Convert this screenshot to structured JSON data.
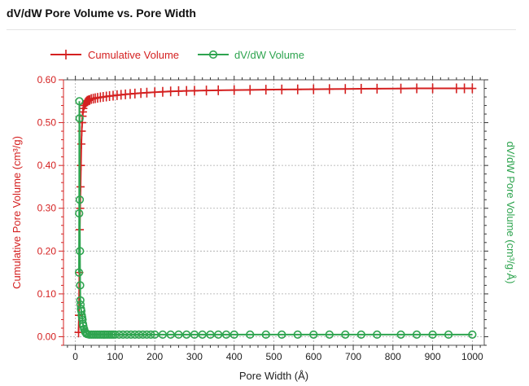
{
  "page": {
    "title": "dV/dW Pore Volume vs. Pore Width"
  },
  "chart_data": {
    "type": "line",
    "title": "dV/dW Pore Volume vs. Pore Width",
    "xlabel": "Pore Width (Å)",
    "ylabel": "Cumulative Pore Volume (cm³/g)",
    "y2label": "dV/dW Pore Volume (cm³/g·Å)",
    "xlim": [
      -30,
      1030
    ],
    "ylim": [
      -0.02,
      0.6
    ],
    "xticks": [
      0,
      100,
      200,
      300,
      400,
      500,
      600,
      700,
      800,
      900,
      1000
    ],
    "xtick_labels": [
      "0",
      "100",
      "200",
      "300",
      "400",
      "500",
      "600",
      "700",
      "800",
      "900",
      "1000"
    ],
    "yticks": [
      0.0,
      0.1,
      0.2,
      0.3,
      0.4,
      0.5,
      0.6
    ],
    "ytick_labels": [
      "0.00",
      "0.10",
      "0.20",
      "0.30",
      "0.40",
      "0.50",
      "0.60"
    ],
    "grid": true,
    "legend_position": "top-left, above plot",
    "series": [
      {
        "name": "Cumulative Volume",
        "color": "#d42020",
        "marker": "plus",
        "x": [
          8,
          9,
          10,
          11,
          12,
          13,
          14,
          15,
          16,
          17,
          18,
          19,
          20,
          22,
          24,
          26,
          28,
          30,
          33,
          36,
          40,
          45,
          50,
          56,
          63,
          70,
          78,
          86,
          95,
          105,
          115,
          126,
          138,
          150,
          165,
          180,
          200,
          220,
          240,
          260,
          280,
          300,
          330,
          360,
          400,
          440,
          480,
          520,
          560,
          600,
          640,
          680,
          720,
          760,
          820,
          860,
          900,
          960,
          980,
          1000
        ],
        "y": [
          0.01,
          0.05,
          0.15,
          0.25,
          0.3,
          0.35,
          0.4,
          0.45,
          0.48,
          0.5,
          0.515,
          0.525,
          0.533,
          0.54,
          0.544,
          0.547,
          0.549,
          0.551,
          0.552,
          0.553,
          0.555,
          0.556,
          0.557,
          0.558,
          0.559,
          0.56,
          0.561,
          0.562,
          0.563,
          0.564,
          0.565,
          0.566,
          0.567,
          0.568,
          0.569,
          0.57,
          0.571,
          0.572,
          0.573,
          0.5735,
          0.574,
          0.5745,
          0.575,
          0.5755,
          0.576,
          0.5765,
          0.577,
          0.5773,
          0.5776,
          0.578,
          0.5783,
          0.5786,
          0.579,
          0.5793,
          0.5796,
          0.58,
          0.58,
          0.58,
          0.58,
          0.58
        ]
      },
      {
        "name": "dV/dW Volume",
        "color": "#2ea44f",
        "marker": "circle",
        "axis": "right",
        "x": [
          9,
          9.5,
          10,
          10.5,
          11,
          11.5,
          12,
          12.5,
          13,
          14,
          15,
          16,
          17,
          18,
          19,
          20,
          22,
          24,
          26,
          28,
          30,
          35,
          40,
          45,
          50,
          55,
          60,
          65,
          70,
          75,
          80,
          85,
          90,
          95,
          100,
          110,
          120,
          130,
          140,
          150,
          160,
          170,
          180,
          190,
          200,
          220,
          240,
          260,
          280,
          300,
          320,
          340,
          360,
          380,
          400,
          440,
          480,
          520,
          560,
          600,
          640,
          680,
          720,
          760,
          820,
          860,
          900,
          940,
          1000
        ],
        "y": [
          0.15,
          0.288,
          0.55,
          0.51,
          0.32,
          0.2,
          0.12,
          0.085,
          0.075,
          0.065,
          0.06,
          0.05,
          0.045,
          0.04,
          0.03,
          0.025,
          0.018,
          0.012,
          0.009,
          0.007,
          0.006,
          0.005,
          0.005,
          0.005,
          0.005,
          0.005,
          0.005,
          0.005,
          0.005,
          0.005,
          0.005,
          0.005,
          0.005,
          0.005,
          0.005,
          0.005,
          0.005,
          0.005,
          0.005,
          0.005,
          0.005,
          0.005,
          0.005,
          0.005,
          0.005,
          0.005,
          0.005,
          0.005,
          0.005,
          0.005,
          0.005,
          0.005,
          0.005,
          0.005,
          0.005,
          0.005,
          0.005,
          0.005,
          0.005,
          0.005,
          0.005,
          0.005,
          0.005,
          0.005,
          0.005,
          0.005,
          0.005,
          0.005,
          0.005
        ]
      }
    ]
  }
}
